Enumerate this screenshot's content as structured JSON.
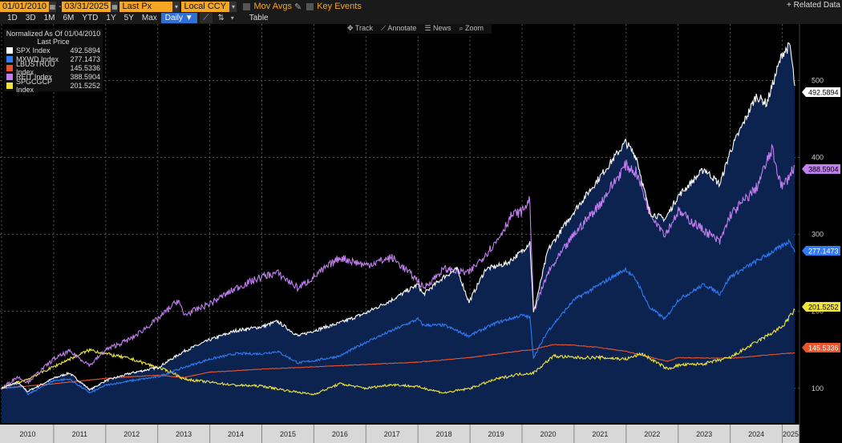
{
  "toolbar": {
    "start_date": "01/01/2010",
    "end_date": "03/31/2025",
    "price_field": "Last Px",
    "currency": "Local CCY",
    "mov_avgs": "Mov Avgs",
    "key_events": "Key Events",
    "ranges": [
      "1D",
      "3D",
      "1M",
      "6M",
      "YTD",
      "1Y",
      "5Y",
      "Max"
    ],
    "frequency": "Daily ▼",
    "table": "Table",
    "related_data": "+ Related Data"
  },
  "tools": [
    "✥ Track",
    "⟋ Annotate",
    "☰ News",
    "⌕ Zoom"
  ],
  "legend": {
    "header1": "Normalized As Of 01/04/2010",
    "header2": "Last Price"
  },
  "colors": {
    "SPX": "#ffffff",
    "MXWD": "#2f7cf6",
    "LBUSTRUU": "#e8552c",
    "REIT": "#c27ff0",
    "SPGCGCP": "#f0e43a"
  },
  "chart_data": {
    "type": "line",
    "title": "Normalized As Of 01/04/2010",
    "ylabel": "Last Price",
    "ylim": [
      55,
      565
    ],
    "yticks": [
      100,
      200,
      300,
      400,
      500
    ],
    "xlim": [
      2010,
      2025.3
    ],
    "x_tick_labels": [
      "2010",
      "2011",
      "2012",
      "2013",
      "2014",
      "2015",
      "2016",
      "2017",
      "2018",
      "2019",
      "2020",
      "2021",
      "2022",
      "2023",
      "2024",
      "2025"
    ],
    "series": [
      {
        "key": "SPX",
        "name": "SPX Index",
        "last": "492.5894",
        "fill": true,
        "x": [
          2010,
          2010.3,
          2010.5,
          2011,
          2011.3,
          2011.7,
          2012,
          2012.5,
          2013,
          2013.5,
          2014,
          2014.5,
          2015,
          2015.3,
          2015.7,
          2016,
          2016.5,
          2017,
          2017.5,
          2018,
          2018.1,
          2018.5,
          2018.75,
          2018.98,
          2019.3,
          2019.7,
          2020,
          2020.15,
          2020.22,
          2020.5,
          2020.9,
          2021,
          2021.5,
          2021.99,
          2022.2,
          2022.45,
          2022.75,
          2023,
          2023.5,
          2023.8,
          2024,
          2024.5,
          2024.7,
          2025,
          2025.15,
          2025.24
        ],
        "y": [
          100,
          108,
          96,
          113,
          120,
          98,
          110,
          120,
          127,
          148,
          163,
          175,
          180,
          187,
          168,
          175,
          185,
          198,
          215,
          235,
          222,
          245,
          255,
          212,
          255,
          262,
          278,
          290,
          198,
          280,
          320,
          330,
          375,
          420,
          400,
          328,
          320,
          350,
          385,
          365,
          408,
          480,
          470,
          535,
          545,
          493
        ]
      },
      {
        "key": "MXWD",
        "name": "MXWD Index",
        "last": "277.1473",
        "x": [
          2010,
          2010.4,
          2010.5,
          2011,
          2011.3,
          2011.7,
          2012,
          2012.5,
          2013,
          2013.5,
          2014,
          2014.5,
          2015,
          2015.3,
          2015.7,
          2016,
          2016.5,
          2017,
          2017.5,
          2018,
          2018.1,
          2018.5,
          2018.98,
          2019.5,
          2020,
          2020.15,
          2020.22,
          2020.5,
          2021,
          2021.5,
          2021.99,
          2022.2,
          2022.45,
          2022.75,
          2023,
          2023.5,
          2023.8,
          2024,
          2024.5,
          2025,
          2025.15,
          2025.24
        ],
        "y": [
          100,
          103,
          92,
          110,
          112,
          94,
          104,
          110,
          115,
          127,
          138,
          145,
          145,
          148,
          133,
          136,
          142,
          160,
          175,
          190,
          182,
          182,
          168,
          185,
          195,
          192,
          140,
          175,
          215,
          235,
          255,
          240,
          205,
          190,
          215,
          235,
          223,
          245,
          265,
          285,
          292,
          277
        ]
      },
      {
        "key": "LBUSTRUU",
        "name": "LBUSTRUU Index",
        "last": "145.5336",
        "x": [
          2010,
          2011,
          2012,
          2013,
          2013.5,
          2014,
          2015,
          2016,
          2017,
          2018,
          2019,
          2020,
          2020.2,
          2020.6,
          2021,
          2021.5,
          2022,
          2022.8,
          2023,
          2024,
          2025,
          2025.24
        ],
        "y": [
          100,
          106,
          113,
          117,
          114,
          121,
          125,
          128,
          131,
          134,
          140,
          149,
          150,
          157,
          156,
          153,
          148,
          135,
          140,
          139,
          145,
          146
        ]
      },
      {
        "key": "REIT",
        "name": "REIT Index",
        "last": "388.5904",
        "x": [
          2010,
          2010.3,
          2010.5,
          2011,
          2011.3,
          2011.7,
          2012,
          2012.5,
          2013,
          2013.4,
          2013.5,
          2014,
          2014.5,
          2015,
          2015.3,
          2015.7,
          2016,
          2016.5,
          2017,
          2017.5,
          2018,
          2018.1,
          2018.5,
          2018.98,
          2019.5,
          2019.8,
          2020,
          2020.15,
          2020.22,
          2020.5,
          2021,
          2021.5,
          2021.99,
          2022.2,
          2022.45,
          2022.75,
          2023,
          2023.5,
          2023.8,
          2024,
          2024.5,
          2024.8,
          2025,
          2025.24
        ],
        "y": [
          100,
          115,
          108,
          138,
          148,
          130,
          150,
          165,
          190,
          215,
          195,
          210,
          230,
          245,
          250,
          230,
          245,
          270,
          260,
          270,
          240,
          230,
          255,
          250,
          290,
          325,
          330,
          345,
          200,
          250,
          300,
          340,
          390,
          380,
          330,
          300,
          330,
          305,
          290,
          325,
          360,
          410,
          360,
          389
        ]
      },
      {
        "key": "SPGCGCP",
        "name": "SPGCGCP Index",
        "last": "201.5252",
        "x": [
          2010,
          2010.5,
          2011,
          2011.3,
          2011.7,
          2012,
          2012.5,
          2013,
          2013.3,
          2013.5,
          2014,
          2014.5,
          2015,
          2015.5,
          2015.99,
          2016.5,
          2017,
          2017.5,
          2018,
          2018.5,
          2019,
          2019.5,
          2019.9,
          2020.22,
          2020.6,
          2021,
          2021.5,
          2022,
          2022.3,
          2022.8,
          2023,
          2023.5,
          2024,
          2024.5,
          2025,
          2025.24
        ],
        "y": [
          100,
          112,
          128,
          138,
          150,
          145,
          138,
          127,
          120,
          112,
          108,
          104,
          103,
          97,
          92,
          106,
          100,
          105,
          102,
          94,
          100,
          112,
          118,
          120,
          142,
          140,
          140,
          138,
          145,
          125,
          130,
          132,
          140,
          160,
          180,
          202
        ]
      }
    ]
  }
}
